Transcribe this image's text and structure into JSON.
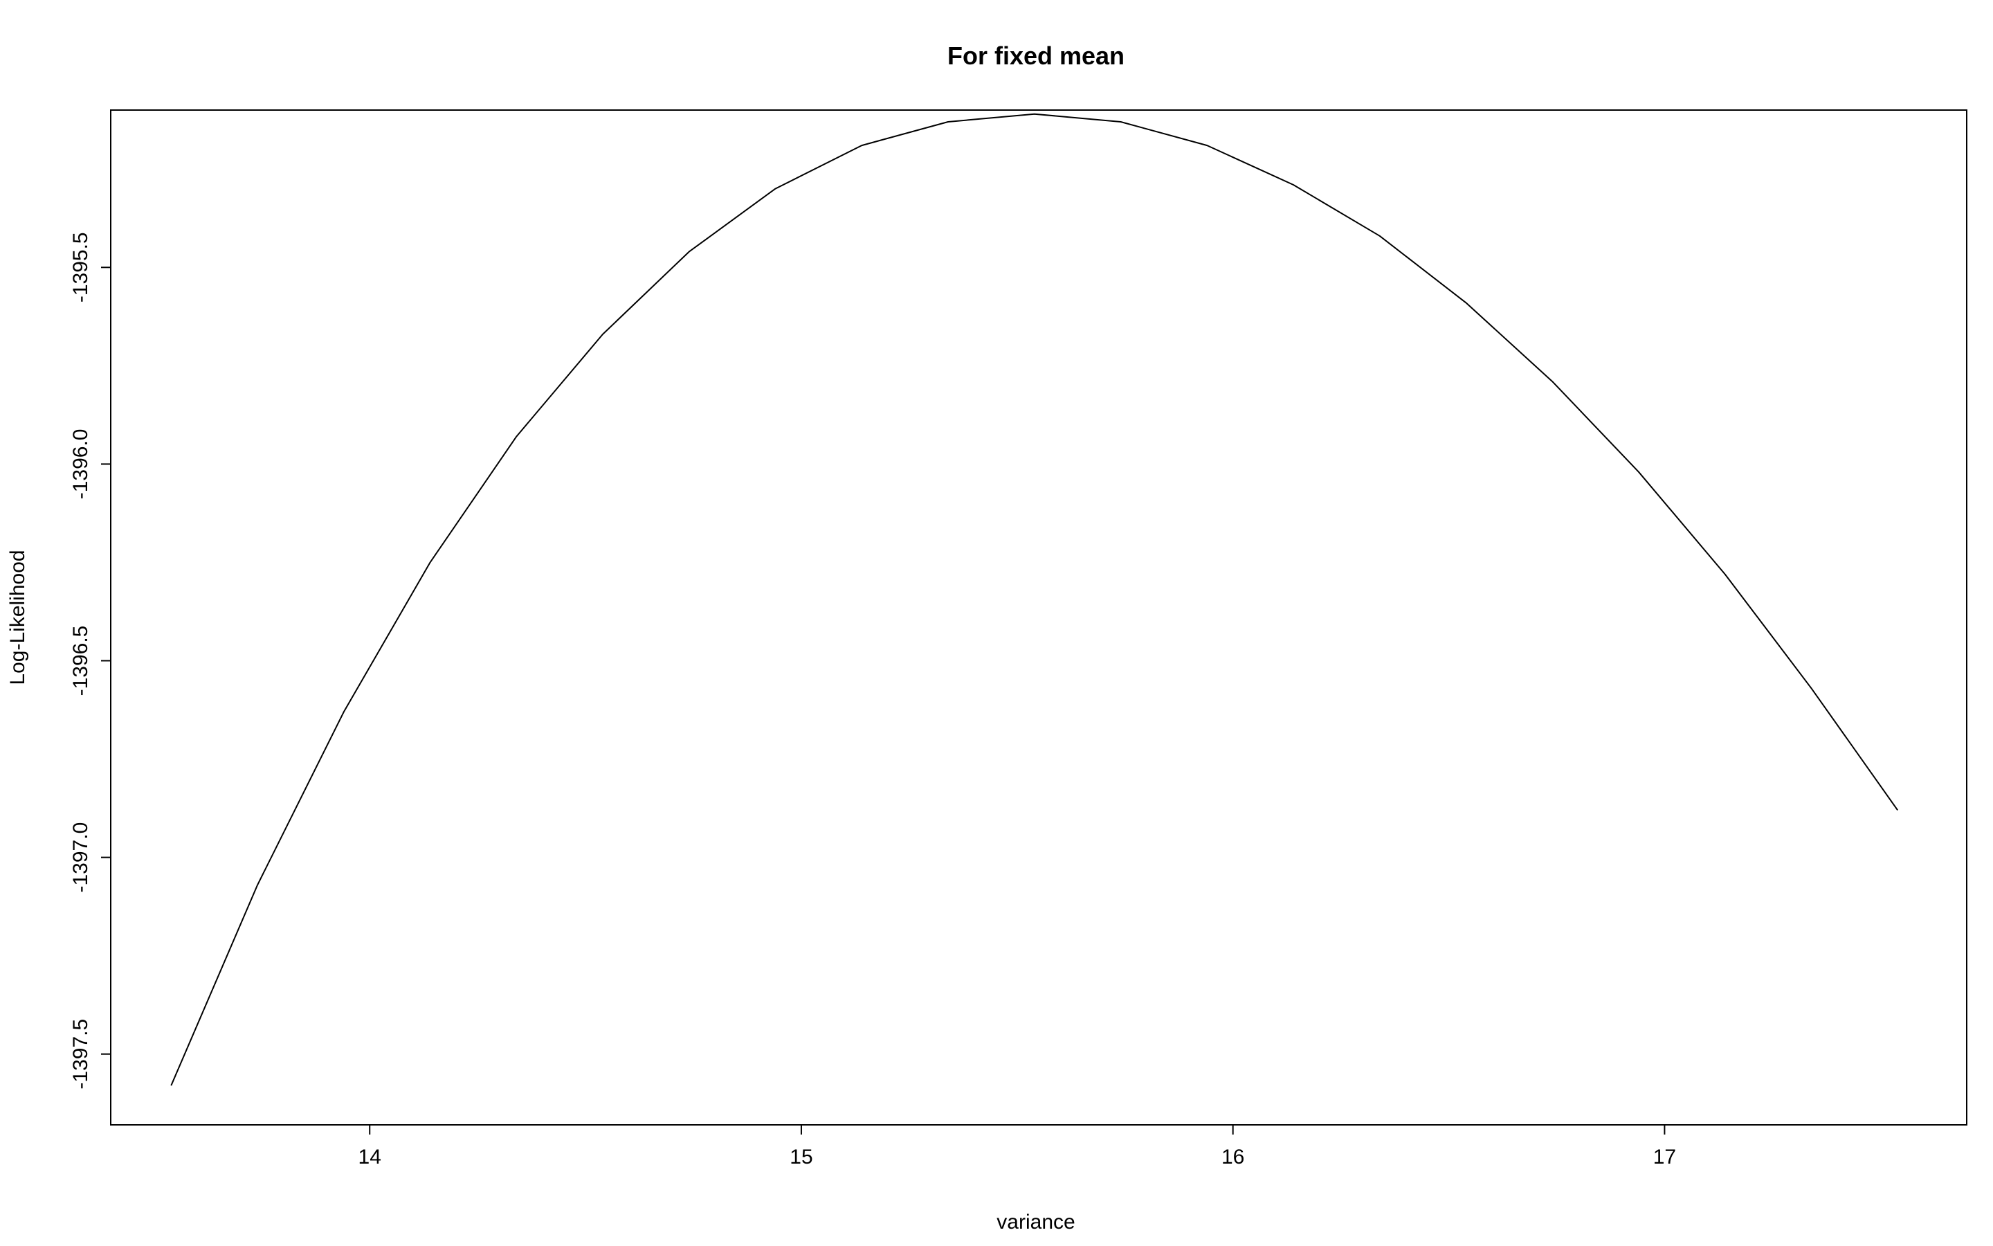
{
  "chart_data": {
    "type": "line",
    "title": "For fixed mean",
    "xlabel": "variance",
    "ylabel": "Log-Likelihood",
    "x_ticks": [
      14,
      15,
      16,
      17
    ],
    "x_tick_labels": [
      "14",
      "15",
      "16",
      "17"
    ],
    "y_ticks": [
      -1395.5,
      -1396.0,
      -1396.5,
      -1397.0,
      -1397.5
    ],
    "y_tick_labels": [
      "-1395.5",
      "-1396.0",
      "-1396.5",
      "-1397.0",
      "-1397.5"
    ],
    "xlim": [
      13.4,
      17.7
    ],
    "ylim": [
      -1397.68,
      -1395.1
    ],
    "grid": false,
    "legend": "none",
    "line_color": "#000000",
    "series": [
      {
        "x": [
          13.54,
          13.74,
          13.94,
          14.14,
          14.34,
          14.54,
          14.74,
          14.94,
          15.14,
          15.34,
          15.54,
          15.74,
          15.94,
          16.14,
          16.34,
          16.54,
          16.74,
          16.94,
          17.14,
          17.34,
          17.54
        ],
        "y": [
          -1397.58,
          -1397.07,
          -1396.63,
          -1396.25,
          -1395.93,
          -1395.67,
          -1395.46,
          -1395.3,
          -1395.19,
          -1395.13,
          -1395.11,
          -1395.13,
          -1395.19,
          -1395.29,
          -1395.42,
          -1395.59,
          -1395.79,
          -1396.02,
          -1396.28,
          -1396.57,
          -1396.88
        ]
      }
    ]
  }
}
